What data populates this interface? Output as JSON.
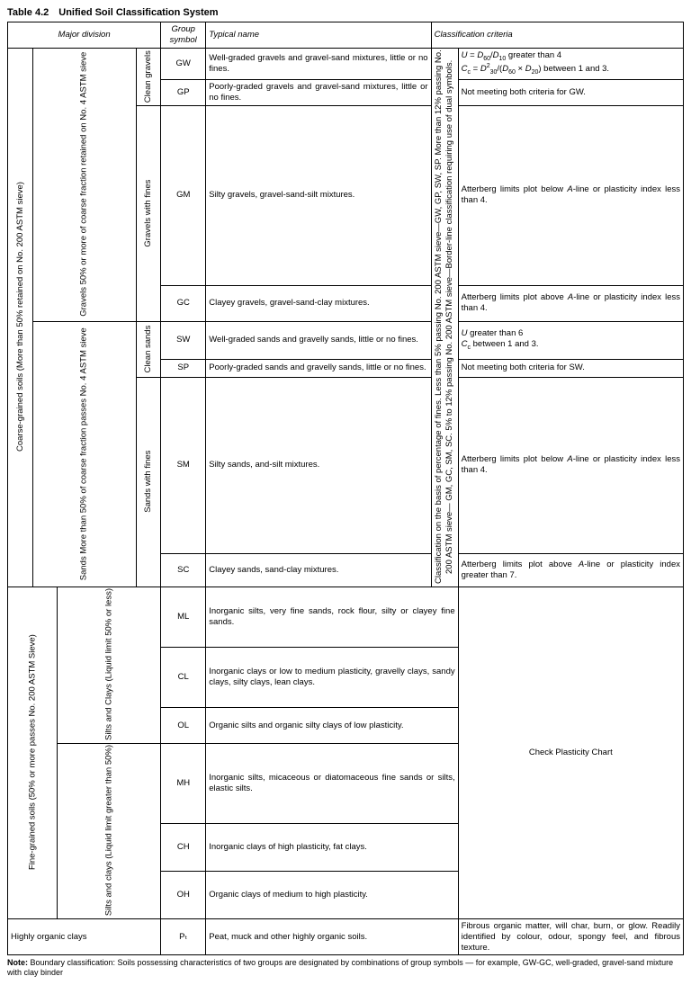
{
  "caption": "Table 4.2 Unified Soil Classification System",
  "headers": {
    "major": "Major division",
    "group": "Group symbol",
    "typical": "Typical name",
    "criteria": "Classification criteria"
  },
  "left": {
    "coarse": "Coarse-grained soils\n(More than 50% retained on No. 200 ASTM sieve)",
    "fine": "Fine-grained soils\n(50% or more passes No. 200 ASTM Sieve)",
    "gravels": "Gravels\n50% or more of coarse fraction retained on No. 4 ASTM sieve",
    "sands": "Sands\nMore than 50% of coarse fraction passes No. 4 ASTM sieve",
    "clean_gravels": "Clean gravels",
    "gravels_fines": "Gravels with fines",
    "clean_sands": "Clean sands",
    "sands_fines": "Sands with fines",
    "silts_low": "Silts and Clays\n(Liquid limit 50% or less)",
    "silts_high": "Silts and clays\n(Liquid limit greater than 50%)",
    "organic": "Highly organic clays"
  },
  "symbols": {
    "gw": "GW",
    "gp": "GP",
    "gm": "GM",
    "gc": "GC",
    "sw": "SW",
    "sp": "SP",
    "sm": "SM",
    "sc": "SC",
    "ml": "ML",
    "cl": "CL",
    "ol": "OL",
    "mh": "MH",
    "ch": "CH",
    "oh": "OH",
    "pt": "Pₜ"
  },
  "names": {
    "gw": "Well-graded gravels and gravel-sand mixtures, little or no fines.",
    "gp": "Poorly-graded gravels and gravel-sand mixtures, little or no fines.",
    "gm": "Silty gravels, gravel-sand-silt mixtures.",
    "gc": "Clayey gravels, gravel-sand-clay mixtures.",
    "sw": "Well-graded sands and gravelly sands, little or no fines.",
    "sp": "Poorly-graded sands and gravelly sands, little or no fines.",
    "sm": "Silty sands, and-silt mixtures.",
    "sc": "Clayey sands, sand-clay mixtures.",
    "ml": "Inorganic silts, very fine sands, rock flour, silty or clayey fine sands.",
    "cl": "Inorganic clays or low to medium plasticity, gravelly clays, sandy clays, silty clays, lean clays.",
    "ol": "Organic silts and organic silty clays of low plasticity.",
    "mh": "Inorganic silts, micaceous or diatomaceous fine sands or silts, elastic silts.",
    "ch": "Inorganic clays of high plasticity, fat clays.",
    "oh": "Organic clays of medium to high plasticity.",
    "pt": "Peat, muck and other highly organic soils."
  },
  "crit": {
    "basis": "Classification on the basis of percentage of fines. Less than 5% passing No. 200 ASTM sieve—GW, GP, SW, SP. More than 12% passing No. 200 ASTM sieve— GM, GC, SM, SC. 5% to 12% passing No. 200 ASTM sieve—Border-line classification requiring use of dual symbols.",
    "gw_html": "<i>U</i> = <i>D</i><sub>60</sub>/<i>D</i><sub>10</sub> greater than 4<br><i>C</i><sub>c</sub> = <i>D</i><sup>2</sup><sub>30</sub>/(<i>D</i><sub>60</sub> × <i>D</i><sub>20</sub>) between 1 and 3.",
    "gp": "Not meeting both criteria for GW.",
    "gm_html": "Atterberg limits plot below <i>A</i>-line or plasticity index less than 4.",
    "gc_html": "Atterberg limits plot above <i>A</i>-line or plasticity index less than 4.",
    "sw_html": "<i>U</i> greater than 6<br><i>C</i><sub>c</sub> between 1 and 3.",
    "sp": "Not meeting both criteria for SW.",
    "sm_html": "Atterberg limits plot below <i>A</i>-line or plasticity index less than 4.",
    "sc_html": "Atterberg limits plot above <i>A</i>-line or plasticity index greater than 7.",
    "chart": "Check Plasticity Chart",
    "pt": "Fibrous organic matter, will char, burn, or glow. Readily identified by colour, odour, spongy feel, and fibrous texture."
  },
  "note_html": "<b>Note:</b> Boundary classification: Soils possessing characteristics of two groups are designated by combinations of group symbols — for example, GW-GC, well-graded, gravel-sand mixture with clay binder"
}
